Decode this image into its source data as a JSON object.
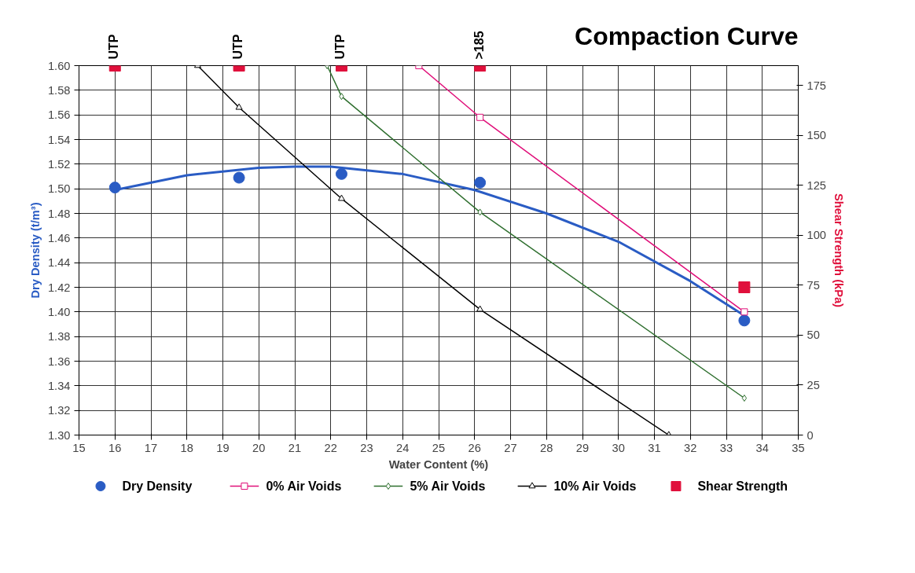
{
  "chart_data": {
    "type": "scatter",
    "title": "Compaction Curve",
    "xlabel": "Water Content (%)",
    "ylabel": "Dry Density (t/m³)",
    "y2label": "Shear Strength (kPa)",
    "xlim": [
      15,
      35
    ],
    "xticks": [
      15,
      16,
      17,
      18,
      19,
      20,
      21,
      22,
      23,
      24,
      25,
      26,
      27,
      28,
      29,
      30,
      31,
      32,
      33,
      34,
      35
    ],
    "ylim": [
      1.3,
      1.6
    ],
    "yticks": [
      {
        "value": 1.3,
        "label": "1.30"
      },
      {
        "value": 1.32,
        "label": "1.32"
      },
      {
        "value": 1.34,
        "label": "1.34"
      },
      {
        "value": 1.36,
        "label": "1.36"
      },
      {
        "value": 1.38,
        "label": "1.38"
      },
      {
        "value": 1.4,
        "label": "1.40"
      },
      {
        "value": 1.42,
        "label": "1.42"
      },
      {
        "value": 1.44,
        "label": "1.44"
      },
      {
        "value": 1.46,
        "label": "1.46"
      },
      {
        "value": 1.48,
        "label": "1.48"
      },
      {
        "value": 1.5,
        "label": "1.50"
      },
      {
        "value": 1.52,
        "label": "1.52"
      },
      {
        "value": 1.54,
        "label": "1.54"
      },
      {
        "value": 1.56,
        "label": "1.56"
      },
      {
        "value": 1.58,
        "label": "1.58"
      },
      {
        "value": 1.6,
        "label": "1.60"
      }
    ],
    "y2lim": [
      0,
      185
    ],
    "y2ticks": [
      0,
      25,
      50,
      75,
      100,
      125,
      150,
      175
    ],
    "grid": true,
    "legend": "bottom",
    "series": [
      {
        "name": "Dry Density",
        "marker": "circle",
        "color": "#2a5cc4",
        "x": [
          16,
          19.45,
          22.3,
          26.15,
          33.5
        ],
        "values": [
          1.501,
          1.509,
          1.512,
          1.505,
          1.393
        ]
      },
      {
        "type": "line",
        "marker": "none",
        "color": "#2a5cc4",
        "x": [
          16,
          18,
          20,
          21,
          22,
          24,
          26,
          28,
          30,
          32,
          33.5
        ],
        "values": [
          1.499,
          1.511,
          1.517,
          1.518,
          1.518,
          1.512,
          1.499,
          1.48,
          1.457,
          1.425,
          1.397
        ]
      },
      {
        "name": "0% Air Voids",
        "type": "line",
        "marker": "square",
        "color": "#e0107a",
        "x": [
          24.45,
          26.15,
          33.5
        ],
        "values": [
          1.6,
          1.558,
          1.4
        ]
      },
      {
        "name": "5% Air Voids",
        "type": "line",
        "marker": "diamond",
        "color": "#2f6f2f",
        "x": [
          21.9,
          22.3,
          26.15,
          33.5
        ],
        "values": [
          1.6,
          1.575,
          1.481,
          1.33
        ]
      },
      {
        "name": "10% Air Voids",
        "type": "line",
        "marker": "triangle",
        "color": "#000000",
        "x": [
          18.3,
          19.45,
          22.3,
          26.15,
          31.4
        ],
        "values": [
          1.6,
          1.566,
          1.492,
          1.402,
          1.3
        ]
      },
      {
        "name": "Shear Strength",
        "marker": "square",
        "axis": "y2",
        "color": "#e0103c",
        "x": [
          16,
          19.45,
          22.3,
          26.15,
          33.5
        ],
        "values": [
          185,
          185,
          185,
          185,
          74
        ],
        "value_labels": [
          "UTP",
          "UTP",
          "UTP",
          ">185",
          null
        ]
      }
    ]
  }
}
